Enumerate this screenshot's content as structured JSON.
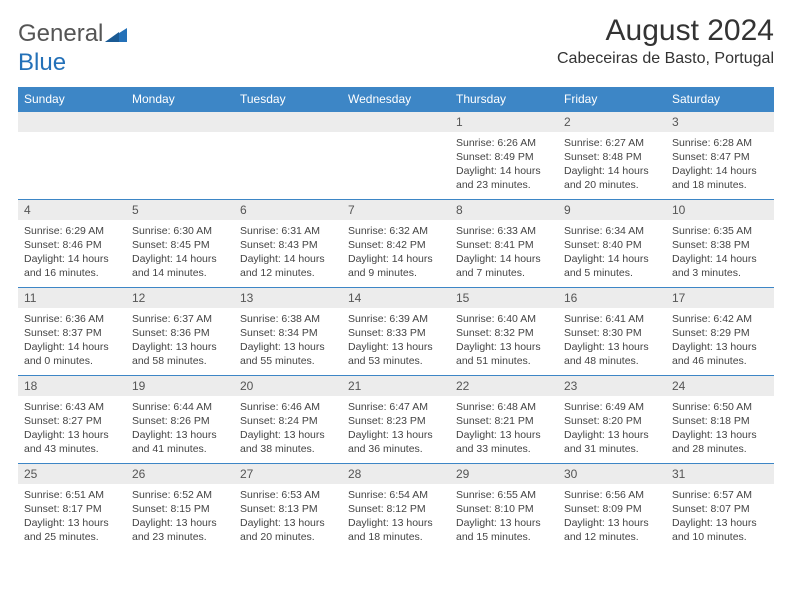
{
  "logo": {
    "text_gray": "General",
    "text_blue": "Blue"
  },
  "header": {
    "month_title": "August 2024",
    "location": "Cabeceiras de Basto, Portugal"
  },
  "colors": {
    "header_bg": "#3d86c6",
    "header_text": "#ffffff",
    "daynum_bg": "#ececec",
    "border": "#3d86c6",
    "logo_blue": "#2471b8",
    "text": "#333333"
  },
  "weekdays": [
    "Sunday",
    "Monday",
    "Tuesday",
    "Wednesday",
    "Thursday",
    "Friday",
    "Saturday"
  ],
  "weeks": [
    [
      null,
      null,
      null,
      null,
      {
        "n": "1",
        "sr": "6:26 AM",
        "ss": "8:49 PM",
        "dl": "14 hours and 23 minutes."
      },
      {
        "n": "2",
        "sr": "6:27 AM",
        "ss": "8:48 PM",
        "dl": "14 hours and 20 minutes."
      },
      {
        "n": "3",
        "sr": "6:28 AM",
        "ss": "8:47 PM",
        "dl": "14 hours and 18 minutes."
      }
    ],
    [
      {
        "n": "4",
        "sr": "6:29 AM",
        "ss": "8:46 PM",
        "dl": "14 hours and 16 minutes."
      },
      {
        "n": "5",
        "sr": "6:30 AM",
        "ss": "8:45 PM",
        "dl": "14 hours and 14 minutes."
      },
      {
        "n": "6",
        "sr": "6:31 AM",
        "ss": "8:43 PM",
        "dl": "14 hours and 12 minutes."
      },
      {
        "n": "7",
        "sr": "6:32 AM",
        "ss": "8:42 PM",
        "dl": "14 hours and 9 minutes."
      },
      {
        "n": "8",
        "sr": "6:33 AM",
        "ss": "8:41 PM",
        "dl": "14 hours and 7 minutes."
      },
      {
        "n": "9",
        "sr": "6:34 AM",
        "ss": "8:40 PM",
        "dl": "14 hours and 5 minutes."
      },
      {
        "n": "10",
        "sr": "6:35 AM",
        "ss": "8:38 PM",
        "dl": "14 hours and 3 minutes."
      }
    ],
    [
      {
        "n": "11",
        "sr": "6:36 AM",
        "ss": "8:37 PM",
        "dl": "14 hours and 0 minutes."
      },
      {
        "n": "12",
        "sr": "6:37 AM",
        "ss": "8:36 PM",
        "dl": "13 hours and 58 minutes."
      },
      {
        "n": "13",
        "sr": "6:38 AM",
        "ss": "8:34 PM",
        "dl": "13 hours and 55 minutes."
      },
      {
        "n": "14",
        "sr": "6:39 AM",
        "ss": "8:33 PM",
        "dl": "13 hours and 53 minutes."
      },
      {
        "n": "15",
        "sr": "6:40 AM",
        "ss": "8:32 PM",
        "dl": "13 hours and 51 minutes."
      },
      {
        "n": "16",
        "sr": "6:41 AM",
        "ss": "8:30 PM",
        "dl": "13 hours and 48 minutes."
      },
      {
        "n": "17",
        "sr": "6:42 AM",
        "ss": "8:29 PM",
        "dl": "13 hours and 46 minutes."
      }
    ],
    [
      {
        "n": "18",
        "sr": "6:43 AM",
        "ss": "8:27 PM",
        "dl": "13 hours and 43 minutes."
      },
      {
        "n": "19",
        "sr": "6:44 AM",
        "ss": "8:26 PM",
        "dl": "13 hours and 41 minutes."
      },
      {
        "n": "20",
        "sr": "6:46 AM",
        "ss": "8:24 PM",
        "dl": "13 hours and 38 minutes."
      },
      {
        "n": "21",
        "sr": "6:47 AM",
        "ss": "8:23 PM",
        "dl": "13 hours and 36 minutes."
      },
      {
        "n": "22",
        "sr": "6:48 AM",
        "ss": "8:21 PM",
        "dl": "13 hours and 33 minutes."
      },
      {
        "n": "23",
        "sr": "6:49 AM",
        "ss": "8:20 PM",
        "dl": "13 hours and 31 minutes."
      },
      {
        "n": "24",
        "sr": "6:50 AM",
        "ss": "8:18 PM",
        "dl": "13 hours and 28 minutes."
      }
    ],
    [
      {
        "n": "25",
        "sr": "6:51 AM",
        "ss": "8:17 PM",
        "dl": "13 hours and 25 minutes."
      },
      {
        "n": "26",
        "sr": "6:52 AM",
        "ss": "8:15 PM",
        "dl": "13 hours and 23 minutes."
      },
      {
        "n": "27",
        "sr": "6:53 AM",
        "ss": "8:13 PM",
        "dl": "13 hours and 20 minutes."
      },
      {
        "n": "28",
        "sr": "6:54 AM",
        "ss": "8:12 PM",
        "dl": "13 hours and 18 minutes."
      },
      {
        "n": "29",
        "sr": "6:55 AM",
        "ss": "8:10 PM",
        "dl": "13 hours and 15 minutes."
      },
      {
        "n": "30",
        "sr": "6:56 AM",
        "ss": "8:09 PM",
        "dl": "13 hours and 12 minutes."
      },
      {
        "n": "31",
        "sr": "6:57 AM",
        "ss": "8:07 PM",
        "dl": "13 hours and 10 minutes."
      }
    ]
  ],
  "labels": {
    "sunrise": "Sunrise:",
    "sunset": "Sunset:",
    "daylight": "Daylight:"
  }
}
